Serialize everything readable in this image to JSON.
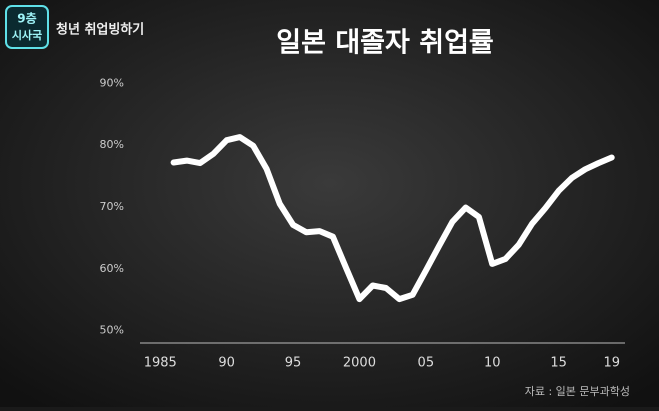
{
  "logo": [
    "9층",
    "시사국"
  ],
  "program": "청년 취업빙하기",
  "chart_data": {
    "type": "line",
    "title": "일본 대졸자 취업률",
    "source": "자료 : 일본 문부과학성",
    "x": [
      1986,
      1987,
      1988,
      1989,
      1990,
      1991,
      1992,
      1993,
      1994,
      1995,
      1996,
      1997,
      1998,
      1999,
      2000,
      2001,
      2002,
      2003,
      2004,
      2005,
      2006,
      2007,
      2008,
      2009,
      2010,
      2011,
      2012,
      2013,
      2014,
      2015,
      2016,
      2017,
      2018,
      2019
    ],
    "values": [
      77.2,
      77.5,
      77.1,
      78.6,
      80.8,
      81.3,
      79.9,
      76.2,
      70.5,
      67.1,
      65.9,
      66.1,
      65.2,
      60.1,
      55.1,
      57.3,
      56.9,
      55.1,
      55.8,
      59.7,
      63.7,
      67.6,
      69.9,
      68.4,
      60.8,
      61.6,
      63.9,
      67.3,
      69.8,
      72.6,
      74.7,
      76.1,
      77.1,
      78.0
    ],
    "color": "#ffffff",
    "xlim": [
      1984,
      2020
    ],
    "xticks": [
      {
        "value": 1985,
        "label": "1985"
      },
      {
        "value": 1990,
        "label": "90"
      },
      {
        "value": 1995,
        "label": "95"
      },
      {
        "value": 2000,
        "label": "2000"
      },
      {
        "value": 2005,
        "label": "05"
      },
      {
        "value": 2010,
        "label": "10"
      },
      {
        "value": 2015,
        "label": "15"
      },
      {
        "value": 2019,
        "label": "19"
      }
    ],
    "ylim": [
      48,
      92
    ],
    "yticks": [
      {
        "value": 90,
        "label": "90%"
      },
      {
        "value": 80,
        "label": "80%"
      },
      {
        "value": 70,
        "label": "70%"
      },
      {
        "value": 60,
        "label": "60%"
      },
      {
        "value": 50,
        "label": "50%"
      }
    ]
  }
}
